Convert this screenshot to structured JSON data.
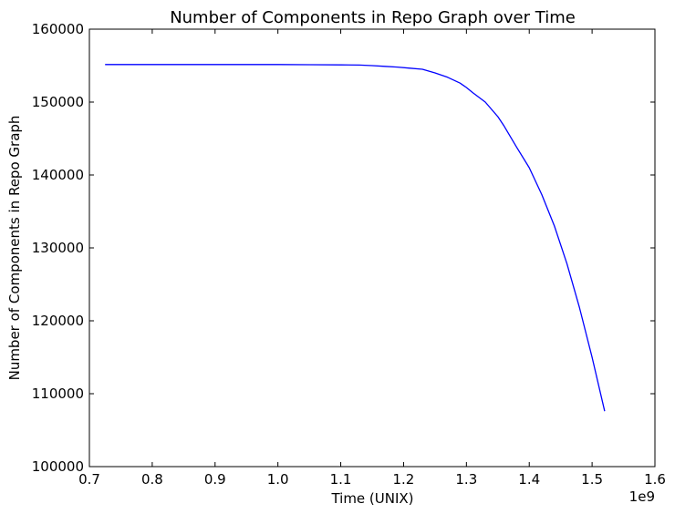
{
  "chart_data": {
    "type": "line",
    "title": "Number of Components in Repo Graph over Time",
    "xlabel": "Time (UNIX)",
    "ylabel": "Number of Components in Repo Graph",
    "x_offset_label": "1e9",
    "xlim": [
      0.7,
      1.6
    ],
    "ylim": [
      100000,
      160000
    ],
    "x_ticks": [
      0.7,
      0.8,
      0.9,
      1.0,
      1.1,
      1.2,
      1.3,
      1.4,
      1.5,
      1.6
    ],
    "x_tick_labels": [
      "0.7",
      "0.8",
      "0.9",
      "1.0",
      "1.1",
      "1.2",
      "1.3",
      "1.4",
      "1.5",
      "1.6"
    ],
    "y_ticks": [
      100000,
      110000,
      120000,
      130000,
      140000,
      150000,
      160000
    ],
    "y_tick_labels": [
      "100000",
      "110000",
      "120000",
      "130000",
      "140000",
      "150000",
      "160000"
    ],
    "grid": false,
    "legend": "none",
    "series": [
      {
        "color": "#0000ff",
        "x": [
          0.725,
          0.8,
          0.9,
          1.0,
          1.05,
          1.1,
          1.13,
          1.15,
          1.17,
          1.19,
          1.21,
          1.23,
          1.25,
          1.27,
          1.29,
          1.3,
          1.31,
          1.33,
          1.35,
          1.36,
          1.38,
          1.4,
          1.42,
          1.44,
          1.46,
          1.48,
          1.5,
          1.52
        ],
        "y": [
          155150,
          155150,
          155150,
          155150,
          155130,
          155100,
          155070,
          155000,
          154900,
          154800,
          154650,
          154500,
          154000,
          153400,
          152600,
          152000,
          151300,
          150000,
          148000,
          146700,
          143800,
          141000,
          137300,
          133000,
          127800,
          121800,
          115000,
          107600
        ]
      }
    ]
  }
}
